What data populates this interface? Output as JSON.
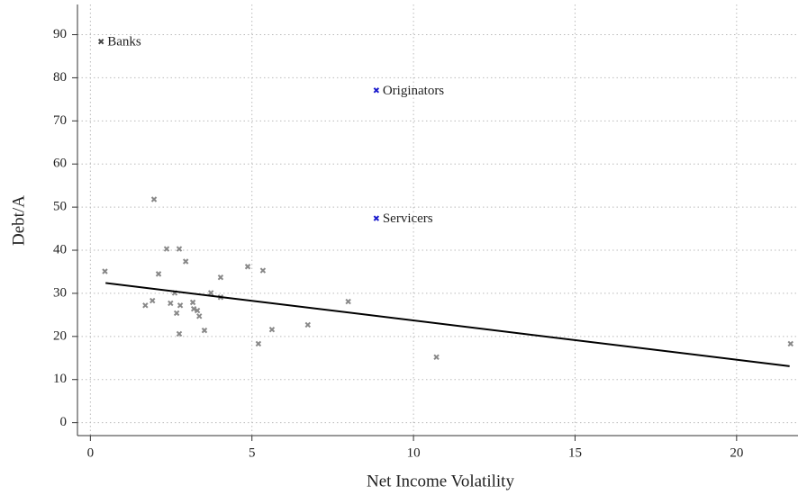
{
  "chart_data": {
    "type": "scatter",
    "x_label": "Net Income Volatility",
    "y_label": "Debt/A",
    "xlim": [
      -0.4,
      21.9
    ],
    "ylim": [
      -3,
      97
    ],
    "xticks": [
      0,
      5,
      10,
      15,
      20
    ],
    "yticks": [
      0,
      10,
      20,
      30,
      40,
      50,
      60,
      70,
      80,
      90
    ],
    "grid": true,
    "series": [
      {
        "color": "#888888",
        "x": [
          0.45,
          1.97,
          2.36,
          2.75,
          2.11,
          2.95,
          1.7,
          1.92,
          2.48,
          2.61,
          2.78,
          2.67,
          2.75,
          3.17,
          3.2,
          3.31,
          3.37,
          3.53,
          3.73,
          4.03,
          4.03,
          4.87,
          5.34,
          5.2,
          5.62,
          6.73,
          7.98,
          10.71,
          21.67
        ],
        "y": [
          35.1,
          51.8,
          40.3,
          40.3,
          34.5,
          37.4,
          27.2,
          28.3,
          27.7,
          30.1,
          27.2,
          25.4,
          20.6,
          27.9,
          26.4,
          26,
          24.7,
          21.4,
          30.1,
          33.7,
          29.1,
          36.2,
          35.3,
          18.3,
          21.6,
          22.7,
          28.1,
          15.2,
          18.3
        ]
      },
      {
        "name": "Banks",
        "color": "#444444",
        "x": [
          0.33
        ],
        "y": [
          88.4
        ]
      },
      {
        "name": "Originators",
        "color": "#1a1acc",
        "x": [
          8.85
        ],
        "y": [
          77.1
        ]
      },
      {
        "name": "Servicers",
        "color": "#1a1acc",
        "x": [
          8.85
        ],
        "y": [
          47.4
        ]
      }
    ],
    "fit_line": {
      "color": "#000000",
      "x": [
        0.47,
        21.64
      ],
      "y": [
        32.4,
        13.1
      ]
    }
  }
}
